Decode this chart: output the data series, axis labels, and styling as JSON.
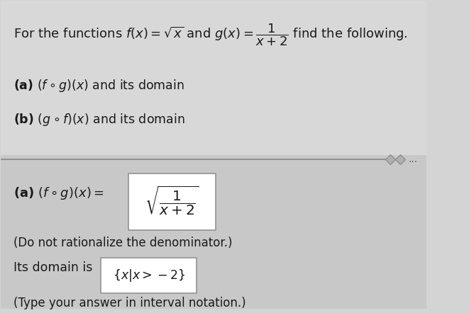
{
  "bg_color_top": "#d4d4d4",
  "bg_color_bottom": "#c8c8c8",
  "text_color": "#1a1a1a",
  "line1": "For the functions $f(x) = \\sqrt{x}$ and $g(x) = \\dfrac{1}{x+2}$ find the following.",
  "part_a": "$\\mathbf{(a)}$ $(f \\circ g)(x)$ and its domain",
  "part_b": "$\\mathbf{(b)}$ $(g \\circ f)(x)$ and its domain",
  "answer_a_text": "$\\mathbf{(a)}$ $(f \\circ g)(x) = $",
  "answer_formula": "$\\sqrt{\\dfrac{1}{x+2}}$",
  "note": "(Do not rationalize the denominator.)",
  "domain_prefix": "Its domain is ",
  "domain_set": "$\\{x|x > -2\\}$",
  "domain_note": "(Type your answer in interval notation.)"
}
